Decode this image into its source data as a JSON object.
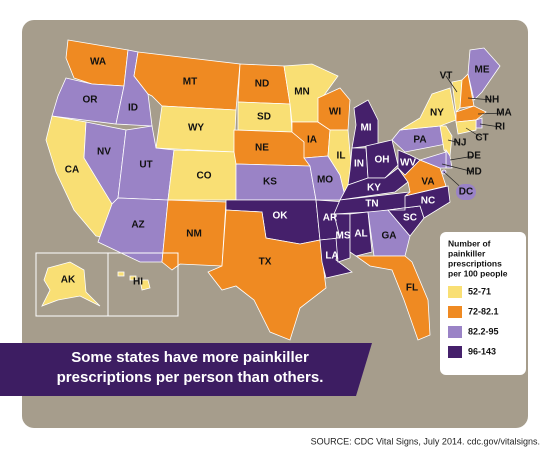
{
  "map": {
    "legend": {
      "title_lines": [
        "Number of",
        "painkiller",
        "prescriptions",
        "per 100 people"
      ],
      "items": [
        {
          "label": "52-71",
          "color": "#f9df74"
        },
        {
          "label": "72-82.1",
          "color": "#ef8a22"
        },
        {
          "label": "82.2-95",
          "color": "#9a83c6"
        },
        {
          "label": "96-143",
          "color": "#45206b"
        }
      ]
    },
    "states": [
      {
        "label": "WA",
        "class": 1
      },
      {
        "label": "OR",
        "class": 2
      },
      {
        "label": "CA",
        "class": 0
      },
      {
        "label": "NV",
        "class": 2
      },
      {
        "label": "ID",
        "class": 2
      },
      {
        "label": "MT",
        "class": 1
      },
      {
        "label": "WY",
        "class": 0
      },
      {
        "label": "UT",
        "class": 2
      },
      {
        "label": "AZ",
        "class": 2
      },
      {
        "label": "CO",
        "class": 0
      },
      {
        "label": "NM",
        "class": 1
      },
      {
        "label": "ND",
        "class": 1
      },
      {
        "label": "SD",
        "class": 0
      },
      {
        "label": "NE",
        "class": 1
      },
      {
        "label": "KS",
        "class": 2
      },
      {
        "label": "OK",
        "class": 3
      },
      {
        "label": "TX",
        "class": 1
      },
      {
        "label": "MN",
        "class": 0
      },
      {
        "label": "IA",
        "class": 1
      },
      {
        "label": "MO",
        "class": 2
      },
      {
        "label": "AR",
        "class": 3
      },
      {
        "label": "LA",
        "class": 3
      },
      {
        "label": "WI",
        "class": 1
      },
      {
        "label": "IL",
        "class": 0
      },
      {
        "label": "MI",
        "class": 3
      },
      {
        "label": "IN",
        "class": 3
      },
      {
        "label": "OH",
        "class": 3
      },
      {
        "label": "KY",
        "class": 3
      },
      {
        "label": "TN",
        "class": 3
      },
      {
        "label": "MS",
        "class": 3
      },
      {
        "label": "AL",
        "class": 3
      },
      {
        "label": "GA",
        "class": 2
      },
      {
        "label": "FL",
        "class": 1
      },
      {
        "label": "SC",
        "class": 3
      },
      {
        "label": "NC",
        "class": 3
      },
      {
        "label": "VA",
        "class": 1
      },
      {
        "label": "WV",
        "class": 3
      },
      {
        "label": "PA",
        "class": 2
      },
      {
        "label": "NY",
        "class": 0
      },
      {
        "label": "VT",
        "class": 0
      },
      {
        "label": "NH",
        "class": 1
      },
      {
        "label": "ME",
        "class": 2
      },
      {
        "label": "MA",
        "class": 1
      },
      {
        "label": "RI",
        "class": 2
      },
      {
        "label": "CT",
        "class": 0
      },
      {
        "label": "NJ",
        "class": 0
      },
      {
        "label": "DE",
        "class": 2
      },
      {
        "label": "MD",
        "class": 2
      },
      {
        "label": "DC",
        "class": 2
      },
      {
        "label": "AK",
        "class": 0
      },
      {
        "label": "HI",
        "class": 0
      }
    ]
  },
  "banner": {
    "lines": [
      "Some states have more painkiller",
      "prescriptions per person than others."
    ]
  },
  "source": "SOURCE:  CDC Vital Signs, July 2014. cdc.gov/vitalsigns."
}
